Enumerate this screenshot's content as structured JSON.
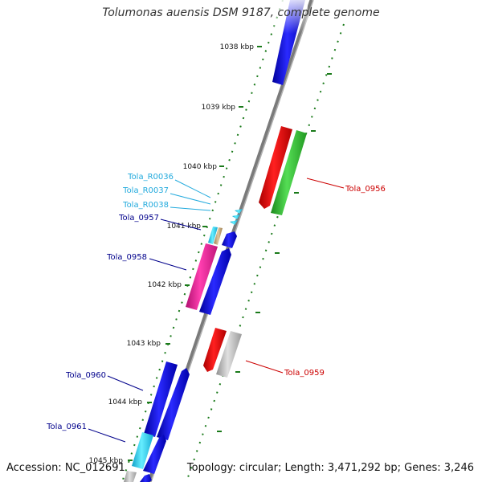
{
  "title": "Tolumonas auensis DSM 9187, complete genome",
  "footer": {
    "accession": "Accession: NC_012691",
    "summary": "Topology: circular; Length: 3,471,292 bp; Genes: 3,246"
  },
  "colors": {
    "backbone": "#808080",
    "tick": "#1a7a1a",
    "blue_gene": "#0000ee",
    "red_gene": "#ee0000",
    "green_gene": "#33bb33",
    "magenta_gene": "#e0209a",
    "cyan_gene": "#22ccee",
    "gray_gene": "#b8b8b8",
    "tan_gene": "#c8a878",
    "label_blue": "#00008b",
    "label_red": "#cc0000",
    "label_cyan": "#22aadd"
  },
  "scale_ticks": [
    {
      "label": "1038 kbp"
    },
    {
      "label": "1039 kbp"
    },
    {
      "label": "1040 kbp"
    },
    {
      "label": "1041 kbp"
    },
    {
      "label": "1042 kbp"
    },
    {
      "label": "1043 kbp"
    },
    {
      "label": "1044 kbp"
    },
    {
      "label": "1045 kbp"
    }
  ],
  "gene_labels": [
    {
      "text": "Tola_0956",
      "color": "red"
    },
    {
      "text": "Tola_R0036",
      "color": "cyan"
    },
    {
      "text": "Tola_R0037",
      "color": "cyan"
    },
    {
      "text": "Tola_R0038",
      "color": "cyan"
    },
    {
      "text": "Tola_0957",
      "color": "blue"
    },
    {
      "text": "Tola_0958",
      "color": "blue"
    },
    {
      "text": "Tola_0959",
      "color": "red"
    },
    {
      "text": "Tola_0960",
      "color": "blue"
    },
    {
      "text": "Tola_0961",
      "color": "blue"
    }
  ]
}
